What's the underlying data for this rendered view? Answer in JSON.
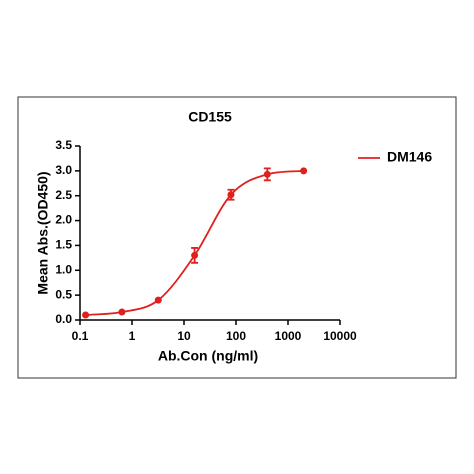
{
  "chart_data": {
    "type": "scatter",
    "title": "CD155",
    "x_label": "Ab.Con (ng/ml)",
    "y_label": "Mean Abs.(OD450)",
    "log_x": true,
    "xlim": [
      0.1,
      10000
    ],
    "xticks": [
      0.1,
      1,
      10,
      100,
      1000,
      10000
    ],
    "ylim": [
      0,
      3.5
    ],
    "yticks": [
      {
        "value": 0,
        "label": "0.0"
      },
      0.5,
      {
        "value": 1,
        "label": "1.0"
      },
      1.5,
      {
        "value": 2,
        "label": "2.0"
      },
      2.5,
      {
        "value": 3,
        "label": "3.0"
      },
      3.5
    ],
    "legend": "top-right",
    "series": [
      {
        "name": "DM146",
        "color": "#e0201f",
        "x": [
          0.128,
          0.64,
          3.2,
          16,
          80,
          400,
          2000
        ],
        "values": [
          0.1,
          0.16,
          0.4,
          1.3,
          2.52,
          2.93,
          3.0
        ],
        "errors": [
          0,
          0,
          0,
          0.15,
          0.1,
          0.12,
          0
        ]
      }
    ]
  }
}
